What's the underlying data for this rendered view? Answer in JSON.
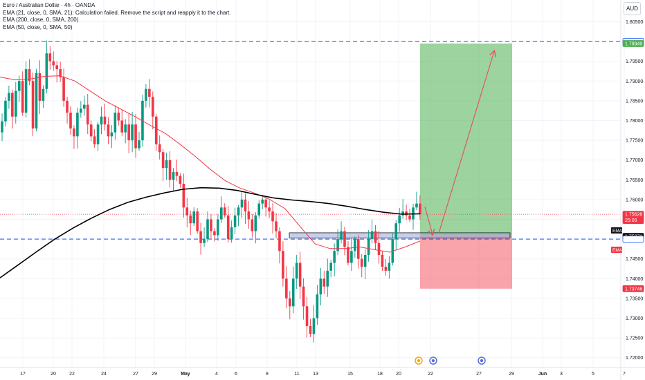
{
  "header": {
    "title": "Euro / Australian Dollar · 4h · OANDA",
    "indicators": [
      "EMA (21, close, 0, SMA, 21): Calculation failed. Remove the script and reapply it to the chart.",
      "EMA (200, close, 0, SMA, 200)",
      "EMA (50, close, 0, SMA, 50)"
    ],
    "currency": "AUD"
  },
  "colors": {
    "up": "#089981",
    "down": "#f23645",
    "ema50": "#f23645",
    "ema200": "#000000",
    "level_line": "#2962ff",
    "target_zone": "#4caf50",
    "stop_zone": "#f23645",
    "zone_box": "#9fa8da"
  },
  "chart_data": {
    "type": "candlestick",
    "symbol": "EURAUD",
    "timeframe": "4h",
    "ylim": [
      1.7175,
      1.8105
    ],
    "y_ticks": [
      "1.80500",
      "1.80000",
      "1.79500",
      "1.79000",
      "1.78500",
      "1.78000",
      "1.77500",
      "1.77000",
      "1.76500",
      "1.76000",
      "1.75500",
      "1.75000",
      "1.74500",
      "1.74000",
      "1.73500",
      "1.73000",
      "1.72500",
      "1.72000"
    ],
    "x_ticks": [
      "17",
      "20",
      "22",
      "24",
      "27",
      "29",
      "May",
      "4",
      "6",
      "8",
      "11",
      "13",
      "15",
      "18",
      "20",
      "22",
      "27",
      "29",
      "Jun",
      "3",
      "5",
      "7"
    ],
    "price_tags": [
      {
        "label": "1.80000",
        "price": 1.8,
        "style": "outline"
      },
      {
        "label": "1.79949",
        "price": 1.79949,
        "style": "green"
      },
      {
        "label": "1.75628",
        "sub": "25:05",
        "price": 1.75628,
        "style": "red"
      },
      {
        "label": "1.75071",
        "price": 1.75071,
        "style": "dark"
      },
      {
        "label": "1.75000",
        "price": 1.75,
        "style": "outline"
      },
      {
        "label": "1.73746",
        "price": 1.73746,
        "style": "red"
      }
    ],
    "ema_tags": [
      {
        "label": "EMA",
        "price": 1.7522,
        "style": "dark"
      },
      {
        "label": "EMA",
        "price": 1.7473,
        "style": "red"
      }
    ],
    "levels": [
      1.8,
      1.75
    ],
    "current_price": 1.75628,
    "position": {
      "entry": 1.75071,
      "target": 1.79949,
      "stop": 1.73746
    },
    "ema200": [
      1.7402,
      1.7435,
      1.7468,
      1.75,
      1.7528,
      1.7553,
      1.7575,
      1.7593,
      1.7606,
      1.7617,
      1.7626,
      1.763,
      1.7629,
      1.7623,
      1.7613,
      1.7604,
      1.7599,
      1.7595,
      1.759,
      1.7583,
      1.7575,
      1.7568,
      1.7563,
      1.7564
    ],
    "ema50": [
      1.791,
      1.7903,
      1.7905,
      1.7912,
      1.7913,
      1.79,
      1.7875,
      1.785,
      1.783,
      1.781,
      1.7788,
      1.7768,
      1.774,
      1.771,
      1.7677,
      1.7648,
      1.7629,
      1.7616,
      1.76,
      1.7577,
      1.7532,
      1.7488,
      1.7476,
      1.7476,
      1.748,
      1.7473,
      1.7467,
      1.748,
      1.7495
    ],
    "candles_seed": [
      1.7798,
      1.785,
      1.787,
      1.781,
      1.7875,
      1.79,
      1.782,
      1.793,
      1.79,
      1.778,
      1.792,
      1.785,
      1.788,
      1.797,
      1.795,
      1.794,
      1.793,
      1.791,
      1.785,
      1.782,
      1.778,
      1.776,
      1.782,
      1.783,
      1.784,
      1.779,
      1.776,
      1.774,
      1.779,
      1.781,
      1.779,
      1.776,
      1.777,
      1.782,
      1.78,
      1.777,
      1.779,
      1.775,
      1.779,
      1.773,
      1.775,
      1.785,
      1.788,
      1.786,
      1.781,
      1.774,
      1.772,
      1.768,
      1.77,
      1.765,
      1.767,
      1.766,
      1.764,
      1.758,
      1.756,
      1.754,
      1.757,
      1.752,
      1.749,
      1.75,
      1.755,
      1.752,
      1.751,
      1.755,
      1.758,
      1.756,
      1.75,
      1.753,
      1.756,
      1.758,
      1.76,
      1.757,
      1.755,
      1.752,
      1.756,
      1.759,
      1.76,
      1.758,
      1.757,
      1.7545,
      1.752,
      1.747,
      1.74,
      1.735,
      1.733,
      1.74,
      1.744,
      1.738,
      1.733,
      1.728,
      1.726,
      1.73,
      1.736,
      1.74,
      1.738,
      1.742,
      1.744,
      1.747,
      1.75,
      1.752,
      1.748,
      1.744,
      1.747,
      1.75,
      1.745,
      1.743,
      1.746,
      1.75,
      1.752,
      1.749,
      1.746,
      1.743,
      1.742,
      1.744,
      1.75,
      1.754,
      1.756,
      1.757,
      1.756,
      1.755,
      1.758,
      1.759,
      1.7563
    ]
  }
}
